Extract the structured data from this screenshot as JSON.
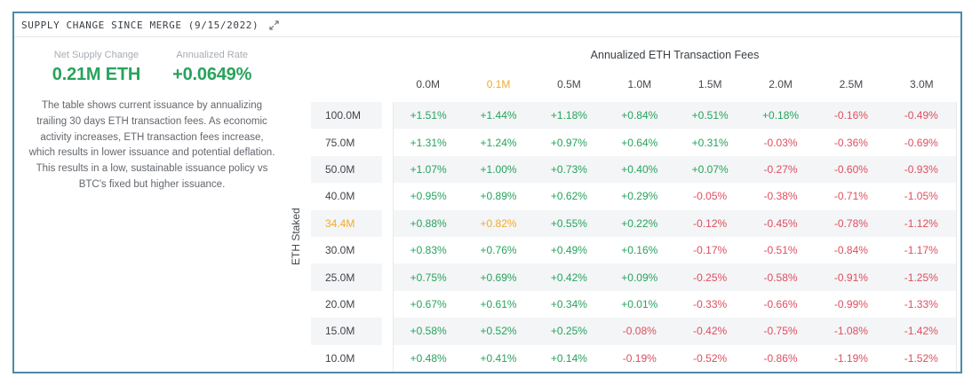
{
  "window": {
    "title": "SUPPLY CHANGE SINCE MERGE (9/15/2022)",
    "collapse_icon": "collapse-diagonal-arrows"
  },
  "stats": [
    {
      "label": "Net Supply Change",
      "value": "0.21M ETH"
    },
    {
      "label": "Annualized Rate",
      "value": "+0.0649%"
    }
  ],
  "description": "The table shows current issuance by annualizing trailing 30 days ETH transaction fees. As economic activity increases, ETH transaction fees increase, which results in lower issuance and potential deflation. This results in a low, sustainable issuance policy vs BTC's fixed but higher issuance.",
  "colors": {
    "positive": "#27a35c",
    "negative": "#dc4f5f",
    "highlight": "#f0ab2e",
    "panel_border": "#4c8ba4",
    "row_stripe": "#f4f5f7"
  },
  "chart_data": {
    "type": "table",
    "title": "Annualized ETH Transaction Fees",
    "xlabel": "Annualized ETH Transaction Fees",
    "ylabel": "ETH Staked",
    "columns": [
      "0.0M",
      "0.1M",
      "0.5M",
      "1.0M",
      "1.5M",
      "2.0M",
      "2.5M",
      "3.0M"
    ],
    "rows": [
      "100.0M",
      "75.0M",
      "50.0M",
      "40.0M",
      "34.4M",
      "30.0M",
      "25.0M",
      "20.0M",
      "15.0M",
      "10.0M"
    ],
    "highlighted_column": "0.1M",
    "highlighted_row": "34.4M",
    "values": [
      [
        "+1.51%",
        "+1.44%",
        "+1.18%",
        "+0.84%",
        "+0.51%",
        "+0.18%",
        "-0.16%",
        "-0.49%"
      ],
      [
        "+1.31%",
        "+1.24%",
        "+0.97%",
        "+0.64%",
        "+0.31%",
        "-0.03%",
        "-0.36%",
        "-0.69%"
      ],
      [
        "+1.07%",
        "+1.00%",
        "+0.73%",
        "+0.40%",
        "+0.07%",
        "-0.27%",
        "-0.60%",
        "-0.93%"
      ],
      [
        "+0.95%",
        "+0.89%",
        "+0.62%",
        "+0.29%",
        "-0.05%",
        "-0.38%",
        "-0.71%",
        "-1.05%"
      ],
      [
        "+0.88%",
        "+0.82%",
        "+0.55%",
        "+0.22%",
        "-0.12%",
        "-0.45%",
        "-0.78%",
        "-1.12%"
      ],
      [
        "+0.83%",
        "+0.76%",
        "+0.49%",
        "+0.16%",
        "-0.17%",
        "-0.51%",
        "-0.84%",
        "-1.17%"
      ],
      [
        "+0.75%",
        "+0.69%",
        "+0.42%",
        "+0.09%",
        "-0.25%",
        "-0.58%",
        "-0.91%",
        "-1.25%"
      ],
      [
        "+0.67%",
        "+0.61%",
        "+0.34%",
        "+0.01%",
        "-0.33%",
        "-0.66%",
        "-0.99%",
        "-1.33%"
      ],
      [
        "+0.58%",
        "+0.52%",
        "+0.25%",
        "-0.08%",
        "-0.42%",
        "-0.75%",
        "-1.08%",
        "-1.42%"
      ],
      [
        "+0.48%",
        "+0.41%",
        "+0.14%",
        "-0.19%",
        "-0.52%",
        "-0.86%",
        "-1.19%",
        "-1.52%"
      ]
    ]
  }
}
